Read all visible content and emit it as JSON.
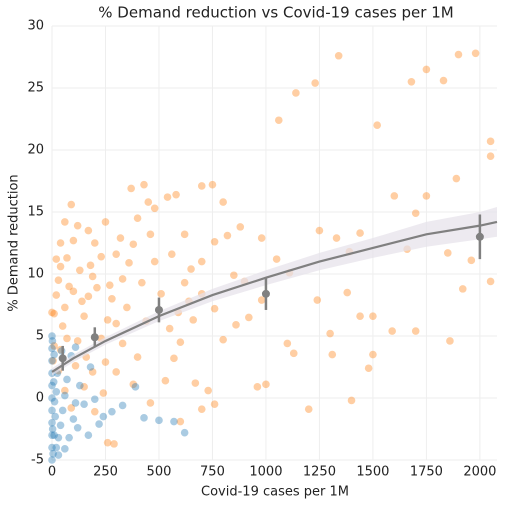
{
  "chart_data": {
    "type": "scatter",
    "title": "% Demand reduction vs Covid-19 cases per 1M",
    "x_label": "Covid-19 cases per 1M",
    "y_label": "% Demand reduction",
    "xlim": [
      0,
      2080
    ],
    "ylim": [
      -5,
      30
    ],
    "xticks": [
      0,
      250,
      500,
      750,
      1000,
      1250,
      1500,
      1750,
      2000
    ],
    "yticks": [
      -5,
      0,
      5,
      10,
      15,
      20,
      25,
      30
    ],
    "grid": true,
    "series": [
      {
        "color": "#ff7f0e",
        "x": [
          1340,
          1230,
          1140,
          1060,
          1520,
          1680,
          1750,
          1830,
          1900,
          1980,
          2050,
          2050,
          1600,
          1750,
          1890,
          1700,
          1440,
          1250,
          1330,
          1390,
          1660,
          1850,
          1960,
          1920,
          2050,
          1860,
          1700,
          1590,
          1500,
          1440,
          1380,
          1500,
          1480,
          1400,
          1200,
          1110,
          1050,
          980,
          1000,
          960,
          980,
          1100,
          1240,
          1300,
          1310,
          1130,
          750,
          700,
          580,
          540,
          430,
          370,
          800,
          760,
          820,
          880,
          700,
          650,
          620,
          850,
          900,
          700,
          760,
          860,
          920,
          800,
          760,
          700,
          730,
          670,
          600,
          570,
          550,
          590,
          640,
          510,
          480,
          460,
          480,
          400,
          380,
          330,
          350,
          330,
          300,
          290,
          260,
          240,
          260,
          270,
          230,
          250,
          200,
          190,
          170,
          150,
          120,
          130,
          100,
          90,
          60,
          80,
          60,
          50,
          40,
          30,
          20,
          10,
          20,
          40,
          70,
          100,
          140,
          180,
          210,
          230,
          190,
          160,
          110,
          30,
          10,
          60,
          90,
          150,
          200,
          250,
          300,
          320,
          360,
          420,
          440,
          400,
          380,
          460,
          530,
          600,
          660,
          450,
          560,
          620,
          40,
          120,
          170,
          280,
          300,
          70,
          0,
          5
        ],
        "values": [
          27.6,
          25.4,
          24.6,
          22.4,
          22,
          25.5,
          26.5,
          25.6,
          27.7,
          27.8,
          20.7,
          19.5,
          16.3,
          16.3,
          17.7,
          14.9,
          13.3,
          13.5,
          12.9,
          11.8,
          12,
          11.7,
          11.1,
          8.8,
          9.4,
          4.6,
          5.4,
          5.4,
          6.6,
          6.6,
          8.5,
          3.5,
          2.4,
          -0.2,
          -0.9,
          10.1,
          11.2,
          12.9,
          1.1,
          0.9,
          7.9,
          4.4,
          7.9,
          5.2,
          3.5,
          3.6,
          17.2,
          17.1,
          16.4,
          16.2,
          17.2,
          16.9,
          15.8,
          12.6,
          13.1,
          13.8,
          11,
          10.4,
          13.2,
          9.9,
          9.4,
          8.4,
          7.2,
          5.9,
          6.5,
          4.7,
          -0.5,
          -0.9,
          0.6,
          1.2,
          -1.9,
          3.2,
          5.6,
          6.9,
          7.8,
          8.4,
          11,
          13.2,
          15.3,
          14.5,
          12.4,
          9.6,
          7.3,
          4.4,
          2.1,
          -3.7,
          -3.6,
          0.4,
          6.3,
          9.1,
          11.4,
          14.2,
          12.5,
          9.8,
          8.2,
          6.6,
          4.6,
          10.3,
          12.7,
          15.6,
          14.2,
          9,
          7.3,
          5.8,
          3.9,
          9.5,
          11.2,
          6.8,
          8.3,
          10.6,
          11.3,
          8.6,
          7.8,
          10.7,
          8.9,
          4.8,
          2.1,
          3.3,
          2.6,
          2.2,
          4.2,
          0.6,
          -0.8,
          0.9,
          -1.1,
          2.9,
          6,
          12.9,
          10.9,
          9.3,
          6.2,
          3.3,
          1.1,
          -0.4,
          1.4,
          4.5,
          6.3,
          15.8,
          11.6,
          9.3,
          12.5,
          13.9,
          13.5,
          8,
          11.6,
          4.8,
          6.9,
          3
        ]
      },
      {
        "color": "#1f77b4",
        "x": [
          0,
          0,
          0,
          0,
          0,
          0,
          0,
          0,
          0,
          0,
          0,
          5,
          10,
          15,
          20,
          25,
          10,
          20,
          30,
          40,
          50,
          60,
          70,
          80,
          100,
          110,
          120,
          130,
          150,
          170,
          90,
          110,
          200,
          220,
          280,
          330,
          390,
          430,
          500,
          570,
          620,
          240,
          60,
          30,
          45,
          180,
          3,
          8,
          12,
          2
        ],
        "values": [
          -5,
          -4,
          -3,
          -2,
          -1,
          0,
          1,
          2,
          3,
          4,
          5,
          -4.5,
          -3,
          -1.5,
          0.5,
          2,
          3.5,
          -4,
          -3.2,
          -2.2,
          -1,
          0.2,
          1.5,
          -3.2,
          -1.7,
          -0.4,
          -2.4,
          1,
          -0.5,
          -3,
          3.4,
          4.1,
          -0.1,
          -2.1,
          -1.1,
          -0.6,
          0.9,
          -1.6,
          -1.8,
          -1.9,
          -2.8,
          -1.5,
          -4.1,
          -4.6,
          3.8,
          2.5,
          -2.5,
          1.3,
          -0.3,
          4.6
        ]
      }
    ],
    "band": {
      "color": "#e6e1ea",
      "x": [
        0,
        100,
        250,
        500,
        750,
        1000,
        1250,
        1500,
        1750,
        2000,
        2080
      ],
      "lower": [
        1.8,
        2.9,
        4.3,
        6.2,
        7.8,
        9.1,
        10.3,
        11.3,
        12.2,
        12.8,
        13.0
      ],
      "upper": [
        2.4,
        3.5,
        4.9,
        7.0,
        8.8,
        10.3,
        11.7,
        12.9,
        14.2,
        15.0,
        15.4
      ]
    },
    "fit": {
      "color": "#808080",
      "x": [
        0,
        100,
        250,
        500,
        750,
        1000,
        1250,
        1500,
        1750,
        2000,
        2080
      ],
      "values": [
        2.1,
        3.2,
        4.6,
        6.6,
        8.3,
        9.7,
        11.0,
        12.1,
        13.2,
        13.9,
        14.2
      ]
    },
    "binned": {
      "color": "#808080",
      "x": [
        50,
        200,
        500,
        1000,
        2000
      ],
      "values": [
        3.2,
        4.9,
        7.1,
        8.4,
        13.0
      ],
      "errors": [
        1.0,
        0.8,
        1.0,
        1.3,
        1.8
      ]
    }
  }
}
